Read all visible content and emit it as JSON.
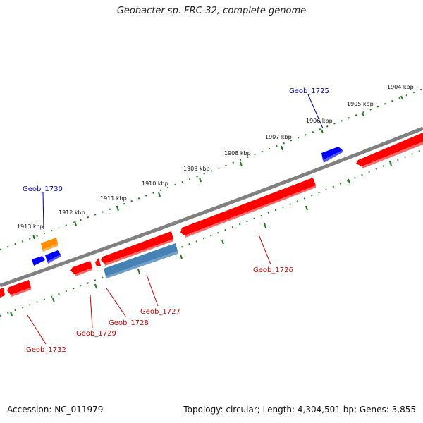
{
  "header": {
    "title": "Geobacter sp. FRC-32, complete genome"
  },
  "footer": {
    "accession": "Accession: NC_011979",
    "topology": "Topology: circular; Length: 4,304,501 bp; Genes: 3,855"
  },
  "colors": {
    "backbone": "#808080",
    "scale_ticks": "#1a7f1a",
    "forward_gene": "#0000ff",
    "reverse_gene": "#ff0000",
    "rna_gene": "#ff8c00",
    "other_feature": "#4682b4",
    "forward_label": "#0000aa",
    "reverse_label": "#cc0000"
  },
  "kbp_ticks": [
    {
      "text": "1904 kbp"
    },
    {
      "text": "1905 kbp"
    },
    {
      "text": "1906 kbp"
    },
    {
      "text": "1907 kbp"
    },
    {
      "text": "1908 kbp"
    },
    {
      "text": "1909 kbp"
    },
    {
      "text": "1910 kbp"
    },
    {
      "text": "1911 kbp"
    },
    {
      "text": "1912 kbp"
    },
    {
      "text": "1913 kbp"
    }
  ],
  "gene_labels": [
    {
      "text": "Geob_1725",
      "strand": "forward"
    },
    {
      "text": "Geob_1730",
      "strand": "forward"
    },
    {
      "text": "Geob_1726",
      "strand": "reverse"
    },
    {
      "text": "Geob_1727",
      "strand": "reverse"
    },
    {
      "text": "Geob_1728",
      "strand": "reverse"
    },
    {
      "text": "Geob_1729",
      "strand": "reverse"
    },
    {
      "text": "Geob_1732",
      "strand": "reverse"
    }
  ]
}
